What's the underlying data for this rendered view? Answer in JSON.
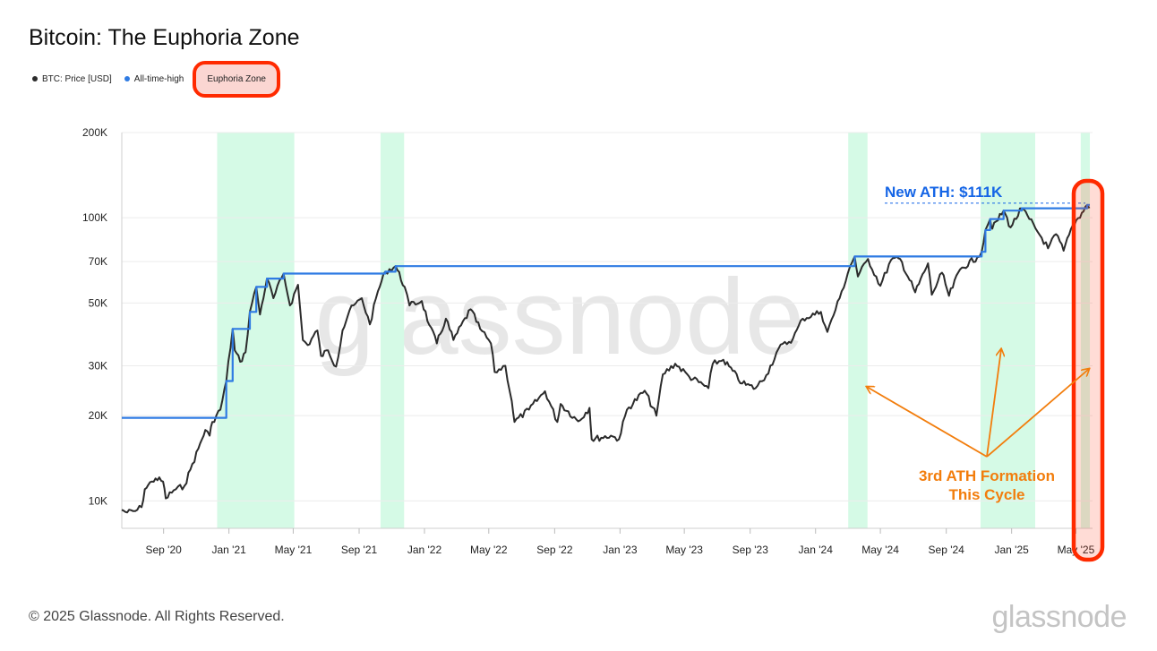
{
  "title": "Bitcoin: The Euphoria Zone",
  "legend": [
    {
      "label": "BTC: Price [USD]",
      "color": "#2b2b2b"
    },
    {
      "label": "All-time-high",
      "color": "#2f7be3"
    },
    {
      "label": "Euphoria Zone",
      "color": "#fbd6d2"
    }
  ],
  "watermark": "glassnode",
  "footer": "© 2025 Glassnode. All Rights Reserved.",
  "brand": "glassnode",
  "colors": {
    "price": "#2b2b2b",
    "ath": "#2f7be3",
    "euphoria": "#d5fae6",
    "highlight": "#ff2a00",
    "annotation": "#f27d0c",
    "ath_label": "#1565e6"
  },
  "chart_data": {
    "type": "line",
    "yscale": "log",
    "ylim": [
      8000,
      200000
    ],
    "xlim": [
      "2020-06-15",
      "2025-06-01"
    ],
    "y_ticks": [
      {
        "label": "10K",
        "v": 10000
      },
      {
        "label": "20K",
        "v": 20000
      },
      {
        "label": "30K",
        "v": 30000
      },
      {
        "label": "50K",
        "v": 50000
      },
      {
        "label": "70K",
        "v": 70000
      },
      {
        "label": "100K",
        "v": 100000
      },
      {
        "label": "200K",
        "v": 200000
      }
    ],
    "x_ticks": [
      {
        "label": "Sep '20",
        "d": "2020-09-01"
      },
      {
        "label": "Jan '21",
        "d": "2021-01-01"
      },
      {
        "label": "May '21",
        "d": "2021-05-01"
      },
      {
        "label": "Sep '21",
        "d": "2021-09-01"
      },
      {
        "label": "Jan '22",
        "d": "2022-01-01"
      },
      {
        "label": "May '22",
        "d": "2022-05-01"
      },
      {
        "label": "Sep '22",
        "d": "2022-09-01"
      },
      {
        "label": "Jan '23",
        "d": "2023-01-01"
      },
      {
        "label": "May '23",
        "d": "2023-05-01"
      },
      {
        "label": "Sep '23",
        "d": "2023-09-01"
      },
      {
        "label": "Jan '24",
        "d": "2024-01-01"
      },
      {
        "label": "May '24",
        "d": "2024-05-01"
      },
      {
        "label": "Sep '24",
        "d": "2024-09-01"
      },
      {
        "label": "Jan '25",
        "d": "2025-01-01"
      },
      {
        "label": "May '25",
        "d": "2025-05-01"
      }
    ],
    "series": [
      {
        "name": "BTC: Price [USD]",
        "points": [
          [
            "2020-06-15",
            9300
          ],
          [
            "2020-06-25",
            9100
          ],
          [
            "2020-07-10",
            9200
          ],
          [
            "2020-07-22",
            9500
          ],
          [
            "2020-07-28",
            11000
          ],
          [
            "2020-08-10",
            11700
          ],
          [
            "2020-08-17",
            12000
          ],
          [
            "2020-08-31",
            11700
          ],
          [
            "2020-09-05",
            10200
          ],
          [
            "2020-09-20",
            10900
          ],
          [
            "2020-10-10",
            11300
          ],
          [
            "2020-10-21",
            12900
          ],
          [
            "2020-11-05",
            15300
          ],
          [
            "2020-11-18",
            17800
          ],
          [
            "2020-11-26",
            17000
          ],
          [
            "2020-12-01",
            19000
          ],
          [
            "2020-12-16",
            21000
          ],
          [
            "2020-12-27",
            26500
          ],
          [
            "2021-01-08",
            40500
          ],
          [
            "2021-01-12",
            34000
          ],
          [
            "2021-01-22",
            31000
          ],
          [
            "2021-02-01",
            33500
          ],
          [
            "2021-02-09",
            46500
          ],
          [
            "2021-02-21",
            57000
          ],
          [
            "2021-02-28",
            45500
          ],
          [
            "2021-03-13",
            61000
          ],
          [
            "2021-03-25",
            52000
          ],
          [
            "2021-04-13",
            63500
          ],
          [
            "2021-04-25",
            49000
          ],
          [
            "2021-05-10",
            58000
          ],
          [
            "2021-05-19",
            37000
          ],
          [
            "2021-05-28",
            35500
          ],
          [
            "2021-06-15",
            40000
          ],
          [
            "2021-06-22",
            32500
          ],
          [
            "2021-07-05",
            34000
          ],
          [
            "2021-07-20",
            29800
          ],
          [
            "2021-08-01",
            40000
          ],
          [
            "2021-08-14",
            47000
          ],
          [
            "2021-09-06",
            52000
          ],
          [
            "2021-09-21",
            42000
          ],
          [
            "2021-10-06",
            55000
          ],
          [
            "2021-10-20",
            64500
          ],
          [
            "2021-11-08",
            67500
          ],
          [
            "2021-11-25",
            57000
          ],
          [
            "2021-12-04",
            49000
          ],
          [
            "2021-12-27",
            50800
          ],
          [
            "2022-01-10",
            41800
          ],
          [
            "2022-01-24",
            36000
          ],
          [
            "2022-02-10",
            44000
          ],
          [
            "2022-02-24",
            37000
          ],
          [
            "2022-03-28",
            47500
          ],
          [
            "2022-04-15",
            40500
          ],
          [
            "2022-05-05",
            36000
          ],
          [
            "2022-05-12",
            28500
          ],
          [
            "2022-06-01",
            30000
          ],
          [
            "2022-06-13",
            22500
          ],
          [
            "2022-06-18",
            19000
          ],
          [
            "2022-07-15",
            21000
          ],
          [
            "2022-08-14",
            24400
          ],
          [
            "2022-09-06",
            19000
          ],
          [
            "2022-09-12",
            22000
          ],
          [
            "2022-10-15",
            19100
          ],
          [
            "2022-11-05",
            21300
          ],
          [
            "2022-11-09",
            16500
          ],
          [
            "2022-12-15",
            17000
          ],
          [
            "2022-12-30",
            16500
          ],
          [
            "2023-01-14",
            21000
          ],
          [
            "2023-02-16",
            24500
          ],
          [
            "2023-03-10",
            20000
          ],
          [
            "2023-03-22",
            28000
          ],
          [
            "2023-04-14",
            30500
          ],
          [
            "2023-05-10",
            27500
          ],
          [
            "2023-06-15",
            25000
          ],
          [
            "2023-06-23",
            30500
          ],
          [
            "2023-07-13",
            31500
          ],
          [
            "2023-08-17",
            26000
          ],
          [
            "2023-09-11",
            25000
          ],
          [
            "2023-10-01",
            27800
          ],
          [
            "2023-10-24",
            34500
          ],
          [
            "2023-11-20",
            37500
          ],
          [
            "2023-12-08",
            44000
          ],
          [
            "2024-01-11",
            46500
          ],
          [
            "2024-01-23",
            39500
          ],
          [
            "2024-02-15",
            52000
          ],
          [
            "2024-03-05",
            67000
          ],
          [
            "2024-03-14",
            73000
          ],
          [
            "2024-03-20",
            62000
          ],
          [
            "2024-04-08",
            71500
          ],
          [
            "2024-05-01",
            57500
          ],
          [
            "2024-05-21",
            71000
          ],
          [
            "2024-06-07",
            71500
          ],
          [
            "2024-07-05",
            54500
          ],
          [
            "2024-07-29",
            69000
          ],
          [
            "2024-08-05",
            53500
          ],
          [
            "2024-08-24",
            64000
          ],
          [
            "2024-09-06",
            53000
          ],
          [
            "2024-09-27",
            65800
          ],
          [
            "2024-10-29",
            72500
          ],
          [
            "2024-11-06",
            75800
          ],
          [
            "2024-11-13",
            90500
          ],
          [
            "2024-11-22",
            99000
          ],
          [
            "2024-11-26",
            91500
          ],
          [
            "2024-12-17",
            106000
          ],
          [
            "2024-12-30",
            92500
          ],
          [
            "2025-01-20",
            108000
          ],
          [
            "2025-02-03",
            99000
          ],
          [
            "2025-02-26",
            85000
          ],
          [
            "2025-03-10",
            78000
          ],
          [
            "2025-03-25",
            87500
          ],
          [
            "2025-04-08",
            76500
          ],
          [
            "2025-04-25",
            94000
          ],
          [
            "2025-05-12",
            104000
          ],
          [
            "2025-05-22",
            111000
          ],
          [
            "2025-05-27",
            109000
          ]
        ]
      },
      {
        "name": "All-time-high",
        "points": [
          [
            "2020-06-15",
            19650
          ],
          [
            "2020-12-16",
            19650
          ],
          [
            "2020-12-27",
            26500
          ],
          [
            "2021-01-08",
            40500
          ],
          [
            "2021-02-09",
            46500
          ],
          [
            "2021-02-21",
            57000
          ],
          [
            "2021-03-13",
            61000
          ],
          [
            "2021-04-13",
            63500
          ],
          [
            "2021-10-20",
            64500
          ],
          [
            "2021-11-08",
            67500
          ],
          [
            "2024-03-14",
            73000
          ],
          [
            "2024-11-06",
            75800
          ],
          [
            "2024-11-13",
            90500
          ],
          [
            "2024-11-22",
            99000
          ],
          [
            "2024-12-17",
            106000
          ],
          [
            "2025-01-20",
            108000
          ],
          [
            "2025-05-22",
            111000
          ],
          [
            "2025-05-27",
            111000
          ]
        ]
      }
    ],
    "euphoria_zones": [
      {
        "start": "2020-12-10",
        "end": "2021-05-03"
      },
      {
        "start": "2021-10-11",
        "end": "2021-11-24"
      },
      {
        "start": "2024-03-02",
        "end": "2024-04-07"
      },
      {
        "start": "2024-11-04",
        "end": "2025-02-14"
      },
      {
        "start": "2025-05-10",
        "end": "2025-05-27"
      }
    ],
    "annotations": {
      "ath_label": "New ATH: $111K",
      "ath_value": 111000,
      "cycle_label_line1": "3rd ATH Formation",
      "cycle_label_line2": "This Cycle"
    }
  }
}
